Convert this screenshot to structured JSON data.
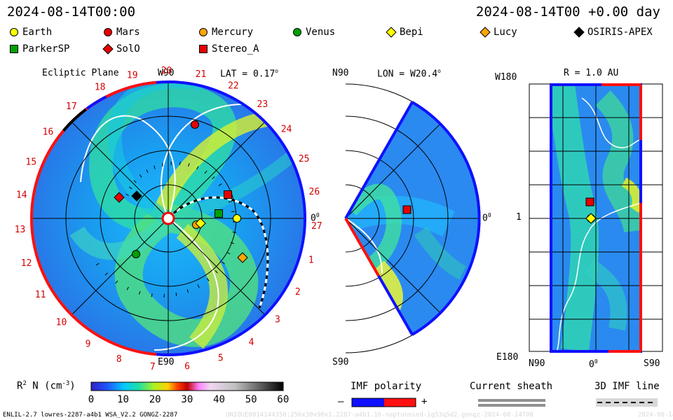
{
  "header": {
    "left_time": "2024-08-14T00:00",
    "right_time": "2024-08-14T00 +0.00 day"
  },
  "legend": [
    {
      "name": "Earth",
      "shape": "circle",
      "color": "#ffff00"
    },
    {
      "name": "Mars",
      "shape": "circle",
      "color": "#e60000"
    },
    {
      "name": "Mercury",
      "shape": "circle",
      "color": "#ffa500"
    },
    {
      "name": "Venus",
      "shape": "circle",
      "color": "#00a000"
    },
    {
      "name": "Bepi",
      "shape": "diamond",
      "color": "#ffff00"
    },
    {
      "name": "Lucy",
      "shape": "diamond",
      "color": "#ffa500"
    },
    {
      "name": "OSIRIS-APEX",
      "shape": "diamond",
      "color": "#000000"
    },
    {
      "name": "ParkerSP",
      "shape": "square",
      "color": "#00a000"
    },
    {
      "name": "SolO",
      "shape": "diamond",
      "color": "#e60000"
    },
    {
      "name": "Stereo_A",
      "shape": "square",
      "color": "#e60000"
    }
  ],
  "panels": {
    "ecliptic": {
      "title": "Ecliptic Plane",
      "top_label": "W90",
      "bottom_label": "E90",
      "lat_label": "LAT = 0.17",
      "zero_label": "0",
      "rotation_labels": [
        "19",
        "20",
        "21",
        "22",
        "23",
        "24",
        "25",
        "26",
        "27",
        "1",
        "2",
        "3",
        "4",
        "5",
        "6",
        "7",
        "8",
        "9",
        "10",
        "11",
        "12",
        "13",
        "14",
        "15",
        "16",
        "17",
        "18"
      ]
    },
    "meridional": {
      "top_label": "N90",
      "bottom_label": "S90",
      "lon_label": "LON = W20.4",
      "zero_label": "0"
    },
    "r_panel": {
      "top_left_label": "W180",
      "title": "R = 1.0 AU",
      "mid_label": "1",
      "bottom_left_label": "E180",
      "x_labels": [
        "N90",
        "0",
        "S90"
      ]
    }
  },
  "colorbar": {
    "label_prefix": "R",
    "label_sup": "2",
    "label_mid": " N (cm",
    "label_sup2": "-3",
    "label_suffix": ")",
    "ticks": [
      "0",
      "10",
      "20",
      "30",
      "40",
      "50",
      "60"
    ]
  },
  "imf": {
    "title": "IMF polarity",
    "minus": "–",
    "plus": "+",
    "sheath_title": "Current sheath",
    "line_title": "3D IMF line"
  },
  "footer": {
    "left": "ENLIL-2.7 lowres-2287-a4b1 WSA_V2.2 GONGZ-2287",
    "right": "UNIQUE0814144350:256x30x90x1.2287-a4b1.16-noptunnied-1g53q5d2.gongz-2024-08-14T00",
    "right_date": "2024-08-14"
  },
  "colors": {
    "imf_negative": "#1010ff",
    "imf_positive": "#ff1010"
  },
  "chart_data": [
    {
      "type": "heatmap",
      "title": "Ecliptic Plane",
      "subtitle": "LAT = 0.17",
      "quantity": "R2 N (cm-3)",
      "range": [
        0,
        60
      ],
      "bodies": {
        "Earth": {
          "r_au": 1.0,
          "lon_deg": 0
        },
        "Mars": {
          "r_au": 1.4,
          "lon_deg": 75
        },
        "Mercury": {
          "r_au": 0.4,
          "lon_deg": -15
        },
        "Venus": {
          "r_au": 0.7,
          "lon_deg": -128
        }
      }
    },
    {
      "type": "heatmap",
      "title": "Meridional",
      "subtitle": "LON = W20.4",
      "lat_range": [
        -90,
        90
      ]
    },
    {
      "type": "heatmap",
      "title": "R = 1.0 AU",
      "lon_range": [
        -180,
        180
      ],
      "lat_range": [
        -90,
        90
      ]
    }
  ]
}
